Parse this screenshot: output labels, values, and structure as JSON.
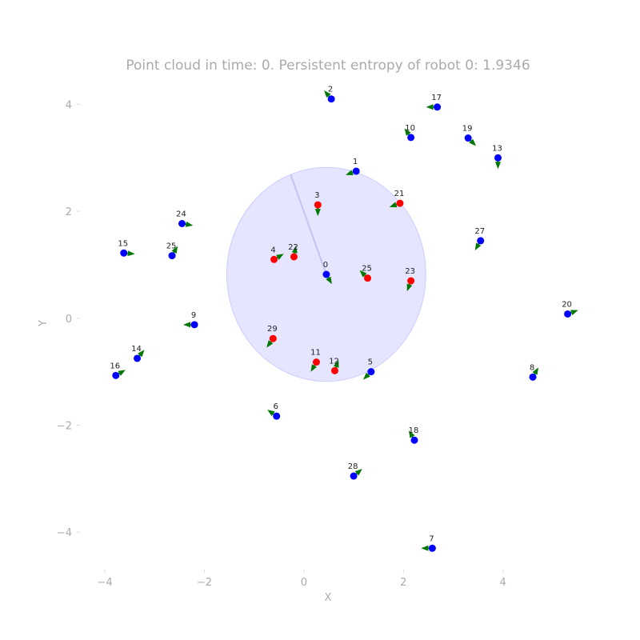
{
  "chart_data": {
    "type": "scatter",
    "title": "Point cloud in time: 0. Persistent entropy of robot 0: 1.9346",
    "xlabel": "X",
    "ylabel": "Y",
    "xlim": [
      -4.5,
      5.5
    ],
    "ylim": [
      -4.7,
      4.5
    ],
    "xticks": [
      -4,
      -2,
      0,
      2,
      4
    ],
    "yticks": [
      -4,
      -2,
      0,
      2,
      4
    ],
    "xtick_labels": [
      "−4",
      "−2",
      "0",
      "2",
      "4"
    ],
    "ytick_labels": [
      "−4",
      "−2",
      "0",
      "2",
      "4"
    ],
    "grid": false,
    "colors": {
      "in_range": "#ff0000",
      "out_of_range": "#0000ff",
      "heading_arrow": "#007700",
      "sensing_circle": "#ccccff"
    },
    "sensing_circle": {
      "robot": 0,
      "center": [
        0.45,
        0.82
      ],
      "radius": 2.0
    },
    "robots": [
      {
        "id": "0",
        "x": 0.45,
        "y": 0.82,
        "in_range": false,
        "heading": -60
      },
      {
        "id": "1",
        "x": 1.05,
        "y": 2.75,
        "in_range": false,
        "heading": 200
      },
      {
        "id": "2",
        "x": 0.55,
        "y": 4.1,
        "in_range": false,
        "heading": 130
      },
      {
        "id": "3",
        "x": 0.28,
        "y": 2.12,
        "in_range": true,
        "heading": -90
      },
      {
        "id": "4",
        "x": -0.6,
        "y": 1.1,
        "in_range": true,
        "heading": 30
      },
      {
        "id": "5",
        "x": 1.35,
        "y": -1.0,
        "in_range": false,
        "heading": 225
      },
      {
        "id": "6",
        "x": -0.55,
        "y": -1.83,
        "in_range": false,
        "heading": 145
      },
      {
        "id": "7",
        "x": 2.58,
        "y": -4.3,
        "in_range": false,
        "heading": 180
      },
      {
        "id": "8",
        "x": 4.6,
        "y": -1.1,
        "in_range": false,
        "heading": 60
      },
      {
        "id": "9",
        "x": -2.2,
        "y": -0.12,
        "in_range": false,
        "heading": 180
      },
      {
        "id": "10",
        "x": 2.15,
        "y": 3.38,
        "in_range": false,
        "heading": 125
      },
      {
        "id": "11",
        "x": 0.25,
        "y": -0.82,
        "in_range": true,
        "heading": 240
      },
      {
        "id": "12",
        "x": 0.62,
        "y": -0.98,
        "in_range": true,
        "heading": 70
      },
      {
        "id": "13",
        "x": 3.9,
        "y": 3.0,
        "in_range": false,
        "heading": -90
      },
      {
        "id": "14",
        "x": -3.35,
        "y": -0.75,
        "in_range": false,
        "heading": 50
      },
      {
        "id": "15",
        "x": -3.62,
        "y": 1.22,
        "in_range": false,
        "heading": -5
      },
      {
        "id": "16",
        "x": -3.78,
        "y": -1.07,
        "in_range": false,
        "heading": 30
      },
      {
        "id": "17",
        "x": 2.68,
        "y": 3.95,
        "in_range": false,
        "heading": 180
      },
      {
        "id": "18",
        "x": 2.22,
        "y": -2.28,
        "in_range": false,
        "heading": 120
      },
      {
        "id": "19",
        "x": 3.3,
        "y": 3.37,
        "in_range": false,
        "heading": -45
      },
      {
        "id": "20",
        "x": 5.3,
        "y": 0.08,
        "in_range": false,
        "heading": 20
      },
      {
        "id": "21",
        "x": 1.93,
        "y": 2.15,
        "in_range": true,
        "heading": 200
      },
      {
        "id": "22",
        "x": -0.2,
        "y": 1.15,
        "in_range": true,
        "heading": 80
      },
      {
        "id": "23",
        "x": 2.15,
        "y": 0.7,
        "in_range": true,
        "heading": 250
      },
      {
        "id": "24",
        "x": -2.45,
        "y": 1.77,
        "in_range": false,
        "heading": -10
      },
      {
        "id": "25",
        "x": 1.28,
        "y": 0.75,
        "in_range": true,
        "heading": 135
      },
      {
        "id": "25",
        "x": -2.65,
        "y": 1.17,
        "in_range": false,
        "heading": 60
      },
      {
        "id": "27",
        "x": 3.55,
        "y": 1.45,
        "in_range": false,
        "heading": 240
      },
      {
        "id": "28",
        "x": 1.0,
        "y": -2.95,
        "in_range": false,
        "heading": 40
      },
      {
        "id": "29",
        "x": -0.62,
        "y": -0.38,
        "in_range": true,
        "heading": 235
      }
    ]
  }
}
